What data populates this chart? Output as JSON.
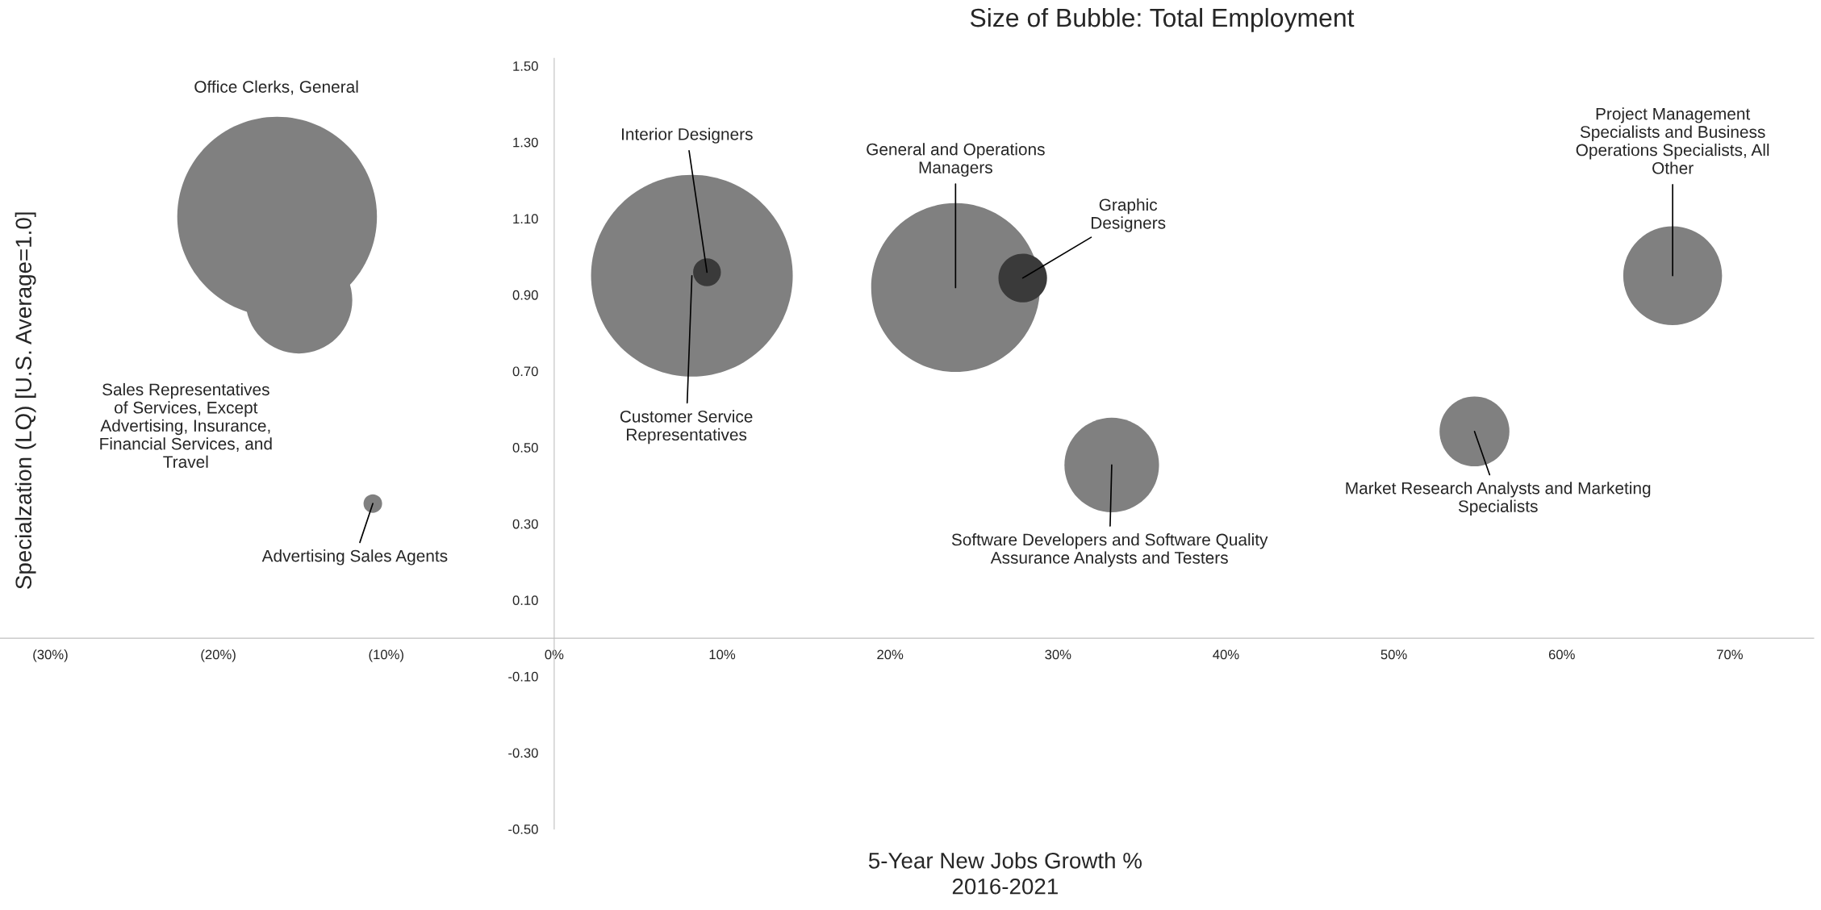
{
  "chart_data": {
    "type": "bubble",
    "title": "Size of Bubble: Total Employment",
    "xlabel": "5-Year New Jobs Growth %\n2016-2021",
    "ylabel": "Specialzation (LQ) [U.S. Average=1.0]",
    "x": [
      -16.5,
      -15.2,
      -10.8,
      8.2,
      9.1,
      23.9,
      27.9,
      33.2,
      54.8,
      66.6
    ],
    "values": [
      1.105,
      0.886,
      0.353,
      0.95,
      0.959,
      0.919,
      0.944,
      0.454,
      0.542,
      0.95
    ],
    "sizes": [
      0.98,
      0.28,
      0.0085,
      1,
      0.019,
      0.7,
      0.058,
      0.22,
      0.12,
      0.24
    ],
    "colors": [
      "#808080",
      "#808080",
      "#808080",
      "#808080",
      "#3a3a3a",
      "#808080",
      "#3a3a3a",
      "#808080",
      "#808080",
      "#808080"
    ],
    "annotations": [
      "Office Clerks, General",
      "Sales Representatives\nof Services, Except\nAdvertising, Insurance,\nFinancial Services, and\nTravel",
      {
        "text": "Advertising Sales Agents",
        "x": -10.8,
        "y": 0.353
      },
      {
        "text": "Customer Service\nRepresentatives",
        "x": 8.2,
        "y": 0.95
      },
      {
        "text": "Interior Designers",
        "x": 9.1,
        "y": 0.959
      },
      {
        "text": "General and Operations\nManagers",
        "x": 23.9,
        "y": 0.919
      },
      {
        "text": "Graphic\nDesigners",
        "x": 27.9,
        "y": 0.944
      },
      {
        "text": "Software Developers and Software Quality\nAssurance Analysts and Testers",
        "x": 33.2,
        "y": 0.454
      },
      {
        "text": "Market Research Analysts and Marketing\nSpecialists",
        "x": 54.8,
        "y": 0.542
      },
      {
        "text": "Project Management\nSpecialists and Business\nOperations Specialists, All\nOther",
        "x": 66.6,
        "y": 0.95
      }
    ],
    "xlim": [
      -33,
      75
    ],
    "ylim": [
      -0.5,
      1.52
    ],
    "xticks": [
      {
        "value": -30,
        "label": "(30%)"
      },
      {
        "value": -20,
        "label": "(20%)"
      },
      {
        "value": -10,
        "label": "(10%)"
      },
      {
        "value": 0,
        "label": "0%"
      },
      {
        "value": 10,
        "label": "10%"
      },
      {
        "value": 20,
        "label": "20%"
      },
      {
        "value": 30,
        "label": "30%"
      },
      {
        "value": 40,
        "label": "40%"
      },
      {
        "value": 50,
        "label": "50%"
      },
      {
        "value": 60,
        "label": "60%"
      },
      {
        "value": 70,
        "label": "70%"
      }
    ],
    "yticks": [
      {
        "value": 1.5,
        "label": "1.50"
      },
      {
        "value": 1.3,
        "label": "1.30"
      },
      {
        "value": 1.1,
        "label": "1.10"
      },
      {
        "value": 0.9,
        "label": "0.90"
      },
      {
        "value": 0.7,
        "label": "0.70"
      },
      {
        "value": 0.5,
        "label": "0.50"
      },
      {
        "value": 0.3,
        "label": "0.30"
      },
      {
        "value": 0.1,
        "label": "0.10"
      },
      {
        "value": -0.1,
        "label": "-0.10"
      },
      {
        "value": -0.3,
        "label": "-0.30"
      },
      {
        "value": -0.5,
        "label": "-0.50"
      }
    ],
    "marker": "circle"
  }
}
